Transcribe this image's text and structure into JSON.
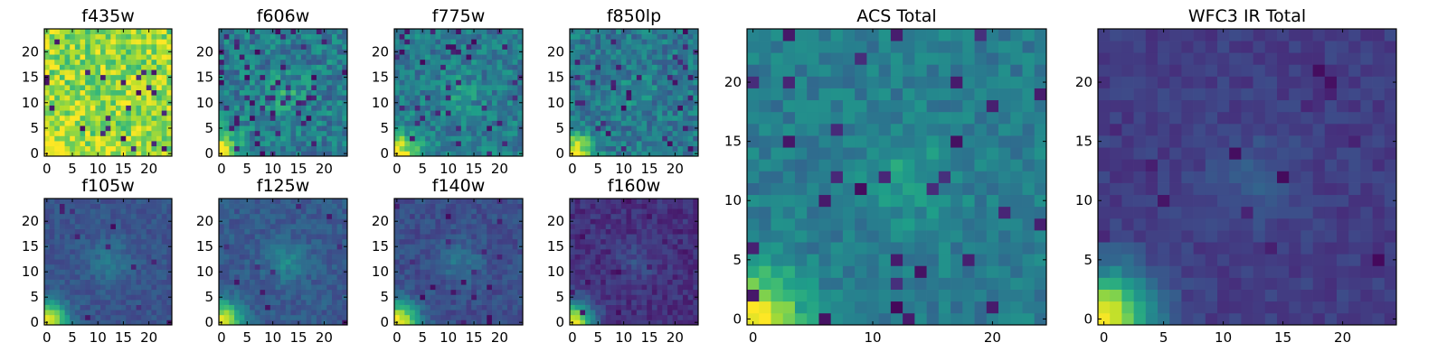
{
  "chart_data": [
    {
      "id": "f435w",
      "type": "heatmap",
      "title": "f435w",
      "xlim": [
        -0.5,
        24.5
      ],
      "ylim": [
        -0.5,
        24.5
      ],
      "xticks": [
        0,
        5,
        10,
        15,
        20
      ],
      "yticks": [
        0,
        5,
        10,
        15,
        20
      ],
      "colormap": "viridis",
      "grid": false,
      "grid_size": [
        25,
        25
      ],
      "base_level": 0.84,
      "corner_peak": 0.2,
      "center_peak": 0.0,
      "noise": 0.18,
      "dark_fraction": 0.04
    },
    {
      "id": "f606w",
      "type": "heatmap",
      "title": "f606w",
      "xlim": [
        -0.5,
        24.5
      ],
      "ylim": [
        -0.5,
        24.5
      ],
      "xticks": [
        0,
        5,
        10,
        15,
        20
      ],
      "yticks": [
        0,
        5,
        10,
        15,
        20
      ],
      "colormap": "viridis",
      "grid": false,
      "grid_size": [
        25,
        25
      ],
      "base_level": 0.42,
      "corner_peak": 0.58,
      "center_peak": 0.15,
      "noise": 0.16,
      "dark_fraction": 0.08
    },
    {
      "id": "f775w",
      "type": "heatmap",
      "title": "f775w",
      "xlim": [
        -0.5,
        24.5
      ],
      "ylim": [
        -0.5,
        24.5
      ],
      "xticks": [
        0,
        5,
        10,
        15,
        20
      ],
      "yticks": [
        0,
        5,
        10,
        15,
        20
      ],
      "colormap": "viridis",
      "grid": false,
      "grid_size": [
        25,
        25
      ],
      "base_level": 0.42,
      "corner_peak": 0.58,
      "center_peak": 0.1,
      "noise": 0.14,
      "dark_fraction": 0.06
    },
    {
      "id": "f850lp",
      "type": "heatmap",
      "title": "f850lp",
      "xlim": [
        -0.5,
        24.5
      ],
      "ylim": [
        -0.5,
        24.5
      ],
      "xticks": [
        0,
        5,
        10,
        15,
        20
      ],
      "yticks": [
        0,
        5,
        10,
        15,
        20
      ],
      "colormap": "viridis",
      "grid": false,
      "grid_size": [
        25,
        25
      ],
      "base_level": 0.4,
      "corner_peak": 0.6,
      "center_peak": 0.08,
      "noise": 0.14,
      "dark_fraction": 0.06
    },
    {
      "id": "f105w",
      "type": "heatmap",
      "title": "f105w",
      "xlim": [
        -0.5,
        24.5
      ],
      "ylim": [
        -0.5,
        24.5
      ],
      "xticks": [
        0,
        5,
        10,
        15,
        20
      ],
      "yticks": [
        0,
        5,
        10,
        15,
        20
      ],
      "colormap": "viridis",
      "grid": false,
      "grid_size": [
        25,
        25
      ],
      "base_level": 0.26,
      "corner_peak": 0.74,
      "center_peak": 0.15,
      "noise": 0.06,
      "dark_fraction": 0.02
    },
    {
      "id": "f125w",
      "type": "heatmap",
      "title": "f125w",
      "xlim": [
        -0.5,
        24.5
      ],
      "ylim": [
        -0.5,
        24.5
      ],
      "xticks": [
        0,
        5,
        10,
        15,
        20
      ],
      "yticks": [
        0,
        5,
        10,
        15,
        20
      ],
      "colormap": "viridis",
      "grid": false,
      "grid_size": [
        25,
        25
      ],
      "base_level": 0.28,
      "corner_peak": 0.72,
      "center_peak": 0.18,
      "noise": 0.07,
      "dark_fraction": 0.02
    },
    {
      "id": "f140w",
      "type": "heatmap",
      "title": "f140w",
      "xlim": [
        -0.5,
        24.5
      ],
      "ylim": [
        -0.5,
        24.5
      ],
      "xticks": [
        0,
        5,
        10,
        15,
        20
      ],
      "yticks": [
        0,
        5,
        10,
        15,
        20
      ],
      "colormap": "viridis",
      "grid": false,
      "grid_size": [
        25,
        25
      ],
      "base_level": 0.24,
      "corner_peak": 0.76,
      "center_peak": 0.15,
      "noise": 0.07,
      "dark_fraction": 0.02
    },
    {
      "id": "f160w",
      "type": "heatmap",
      "title": "f160w",
      "xlim": [
        -0.5,
        24.5
      ],
      "ylim": [
        -0.5,
        24.5
      ],
      "xticks": [
        0,
        5,
        10,
        15,
        20
      ],
      "yticks": [
        0,
        5,
        10,
        15,
        20
      ],
      "colormap": "viridis",
      "grid": false,
      "grid_size": [
        25,
        25
      ],
      "base_level": 0.14,
      "corner_peak": 0.86,
      "center_peak": 0.1,
      "noise": 0.07,
      "dark_fraction": 0.04
    },
    {
      "id": "acs-total",
      "type": "heatmap",
      "title": "ACS Total",
      "xlim": [
        -0.5,
        24.5
      ],
      "ylim": [
        -0.5,
        24.5
      ],
      "xticks": [
        0,
        10,
        20
      ],
      "yticks": [
        0,
        5,
        10,
        15,
        20
      ],
      "colormap": "viridis",
      "grid": false,
      "grid_size": [
        25,
        25
      ],
      "base_level": 0.42,
      "corner_peak": 0.58,
      "center_peak": 0.15,
      "noise": 0.09,
      "dark_fraction": 0.05
    },
    {
      "id": "wfc3-ir-total",
      "type": "heatmap",
      "title": "WFC3 IR Total",
      "xlim": [
        -0.5,
        24.5
      ],
      "ylim": [
        -0.5,
        24.5
      ],
      "xticks": [
        0,
        5,
        10,
        15,
        20
      ],
      "yticks": [
        0,
        5,
        10,
        15,
        20
      ],
      "colormap": "viridis",
      "grid": false,
      "grid_size": [
        25,
        25
      ],
      "base_level": 0.18,
      "corner_peak": 0.82,
      "center_peak": 0.1,
      "noise": 0.05,
      "dark_fraction": 0.02
    }
  ]
}
